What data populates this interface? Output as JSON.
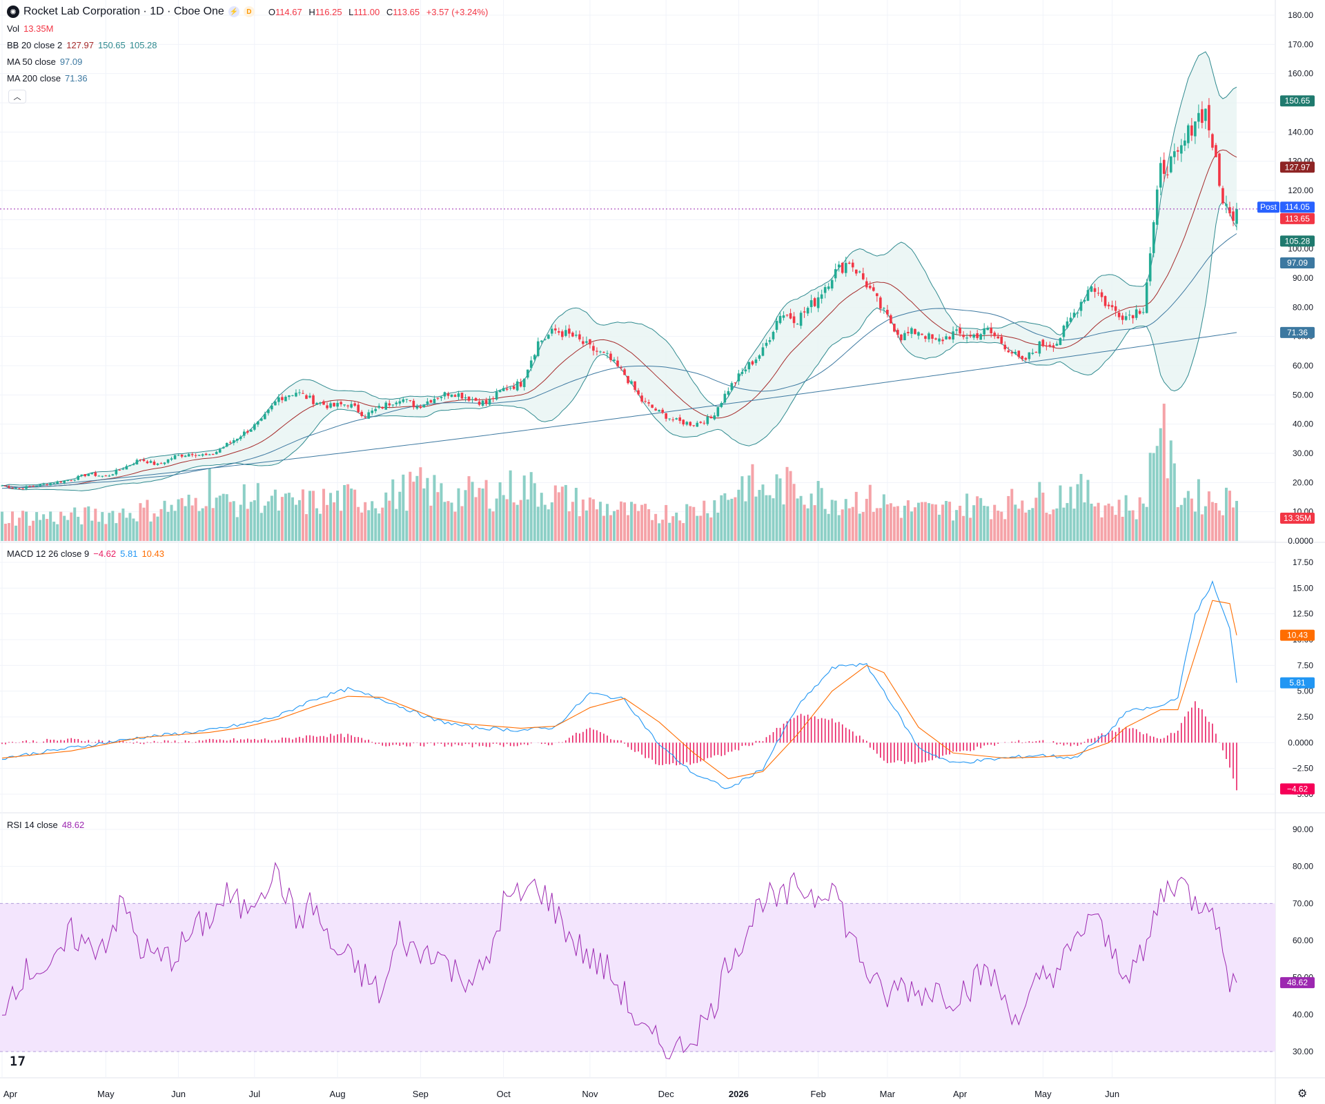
{
  "header": {
    "title": "Rocket Lab Corporation · 1D · Cboe One",
    "badge1": "⚡",
    "badge2": "D",
    "open_label": "O",
    "open": "114.67",
    "high_label": "H",
    "high": "116.25",
    "low_label": "L",
    "low": "111.00",
    "close_label": "C",
    "close": "113.65",
    "change": "+3.57 (+3.24%)"
  },
  "legends": {
    "vol": {
      "name": "Vol",
      "value": "13.35M"
    },
    "bb": {
      "name": "BB 20 close 2",
      "v1": "127.97",
      "v2": "150.65",
      "v3": "105.28"
    },
    "ma50": {
      "name": "MA 50 close",
      "value": "97.09"
    },
    "ma200": {
      "name": "MA 200 close",
      "value": "71.36"
    },
    "macd": {
      "name": "MACD 12 26 close 9",
      "v1": "−4.62",
      "v2": "5.81",
      "v3": "10.43"
    },
    "rsi": {
      "name": "RSI 14 close",
      "value": "48.62"
    }
  },
  "colors": {
    "up": "#22ab94",
    "down": "#f23645",
    "vol_up": "#8ccfc6",
    "vol_down": "#f5a3a8",
    "bb_basis": "#a52a2a",
    "bb_band": "#2f8a8f",
    "bb_fill": "#e7f4f2",
    "ma50": "#3c78a0",
    "ma200": "#3c78a0",
    "macd": "#2196f3",
    "signal": "#ff6d00",
    "hist": "#e91e63",
    "rsi": "#9c27b0",
    "rsi_band": "#f3e5fd",
    "post": "#2962ff",
    "last": "#f23645"
  },
  "chart_data": [
    {
      "type": "candlestick",
      "title": "Rocket Lab Corporation · 1D · Cboe One",
      "y_range": [
        0,
        180
      ],
      "y_ticks": [
        "180.00",
        "170.00",
        "160.00",
        "150.00",
        "140.00",
        "130.00",
        "120.00",
        "110.00",
        "100.00",
        "90.00",
        "80.00",
        "70.00",
        "60.00",
        "50.00",
        "40.00",
        "30.00",
        "20.00",
        "10.00",
        "0.0000"
      ],
      "x_labels": [
        "Apr",
        "May",
        "Jun",
        "Jul",
        "Aug",
        "Sep",
        "Oct",
        "Nov",
        "Dec",
        "2026",
        "Feb",
        "Mar",
        "Apr",
        "May",
        "Jun"
      ],
      "close_anchors": [
        [
          0,
          19
        ],
        [
          5,
          18
        ],
        [
          10,
          19
        ],
        [
          15,
          20
        ],
        [
          20,
          21
        ],
        [
          25,
          23
        ],
        [
          30,
          22
        ],
        [
          35,
          25
        ],
        [
          40,
          28
        ],
        [
          45,
          26
        ],
        [
          50,
          29
        ],
        [
          55,
          30
        ],
        [
          60,
          29
        ],
        [
          65,
          33
        ],
        [
          70,
          37
        ],
        [
          75,
          41
        ],
        [
          80,
          49
        ],
        [
          85,
          51
        ],
        [
          90,
          48
        ],
        [
          95,
          46
        ],
        [
          100,
          47
        ],
        [
          105,
          43
        ],
        [
          110,
          46
        ],
        [
          115,
          49
        ],
        [
          120,
          46
        ],
        [
          125,
          49
        ],
        [
          130,
          51
        ],
        [
          135,
          49
        ],
        [
          140,
          47
        ],
        [
          145,
          52
        ],
        [
          150,
          54
        ],
        [
          155,
          68
        ],
        [
          160,
          72
        ],
        [
          165,
          70
        ],
        [
          170,
          66
        ],
        [
          175,
          63
        ],
        [
          180,
          57
        ],
        [
          185,
          48
        ],
        [
          190,
          44
        ],
        [
          195,
          41
        ],
        [
          200,
          40
        ],
        [
          205,
          42
        ],
        [
          210,
          52
        ],
        [
          215,
          59
        ],
        [
          220,
          65
        ],
        [
          225,
          78
        ],
        [
          230,
          76
        ],
        [
          235,
          82
        ],
        [
          240,
          91
        ],
        [
          245,
          96
        ],
        [
          250,
          88
        ],
        [
          255,
          78
        ],
        [
          260,
          70
        ],
        [
          265,
          72
        ],
        [
          270,
          68
        ],
        [
          275,
          71
        ],
        [
          280,
          70
        ],
        [
          285,
          72
        ],
        [
          290,
          67
        ],
        [
          295,
          61
        ],
        [
          300,
          67
        ],
        [
          305,
          68
        ],
        [
          310,
          78
        ],
        [
          315,
          88
        ],
        [
          320,
          80
        ],
        [
          325,
          77
        ],
        [
          330,
          80
        ],
        [
          335,
          127
        ],
        [
          340,
          131
        ],
        [
          345,
          145
        ],
        [
          348,
          147
        ],
        [
          350,
          136
        ],
        [
          352,
          121
        ],
        [
          355,
          111
        ],
        [
          357,
          113.65
        ]
      ],
      "volume_anchors_M": [
        [
          0,
          8
        ],
        [
          20,
          8
        ],
        [
          40,
          10
        ],
        [
          55,
          12
        ],
        [
          60,
          19
        ],
        [
          65,
          12
        ],
        [
          75,
          15
        ],
        [
          80,
          12
        ],
        [
          100,
          14
        ],
        [
          110,
          14
        ],
        [
          120,
          18
        ],
        [
          130,
          15
        ],
        [
          140,
          16
        ],
        [
          150,
          18
        ],
        [
          155,
          17
        ],
        [
          160,
          15
        ],
        [
          170,
          12
        ],
        [
          185,
          9
        ],
        [
          200,
          10
        ],
        [
          210,
          15
        ],
        [
          215,
          20
        ],
        [
          220,
          16
        ],
        [
          225,
          18
        ],
        [
          230,
          18
        ],
        [
          235,
          16
        ],
        [
          240,
          14
        ],
        [
          250,
          14
        ],
        [
          260,
          11
        ],
        [
          270,
          10
        ],
        [
          280,
          12
        ],
        [
          290,
          12
        ],
        [
          295,
          14
        ],
        [
          305,
          15
        ],
        [
          310,
          17
        ],
        [
          320,
          12
        ],
        [
          330,
          11
        ],
        [
          335,
          46
        ],
        [
          336,
          33
        ],
        [
          340,
          16
        ],
        [
          350,
          14
        ],
        [
          357,
          13.35
        ]
      ],
      "series_values": {
        "bb_basis": 127.97,
        "bb_upper": 150.65,
        "bb_lower": 105.28,
        "ma50": 97.09,
        "ma200": 71.36,
        "post": 114.05,
        "last": 113.65,
        "volume_last": "13.35M"
      },
      "axis_tags": {
        "bb_upper": "150.65",
        "bb_basis": "127.97",
        "post_label": "Post",
        "post": "114.05",
        "last": "113.65",
        "bb_lower": "105.28",
        "ma50": "97.09",
        "ma200": "71.36",
        "volume": "13.35M"
      }
    },
    {
      "type": "line",
      "title": "MACD 12 26 close 9",
      "y_range": [
        -5,
        17.5
      ],
      "y_ticks": [
        "17.50",
        "15.00",
        "12.50",
        "10.00",
        "7.50",
        "5.00",
        "2.50",
        "0.0000",
        "−2.50",
        "−5.00"
      ],
      "macd_anchors": [
        [
          0,
          -1.5
        ],
        [
          20,
          -0.5
        ],
        [
          40,
          0.5
        ],
        [
          60,
          1.2
        ],
        [
          70,
          1.8
        ],
        [
          80,
          2.6
        ],
        [
          90,
          4.2
        ],
        [
          100,
          5.2
        ],
        [
          110,
          4.2
        ],
        [
          125,
          2.2
        ],
        [
          135,
          1.5
        ],
        [
          150,
          1.2
        ],
        [
          160,
          1.5
        ],
        [
          170,
          4.8
        ],
        [
          180,
          4.2
        ],
        [
          190,
          -0.2
        ],
        [
          200,
          -3.0
        ],
        [
          210,
          -4.5
        ],
        [
          220,
          -2.5
        ],
        [
          230,
          3.5
        ],
        [
          240,
          7.2
        ],
        [
          245,
          7.6
        ],
        [
          250,
          7.5
        ],
        [
          255,
          5.0
        ],
        [
          265,
          -0.5
        ],
        [
          275,
          -2.0
        ],
        [
          290,
          -1.5
        ],
        [
          300,
          -1.2
        ],
        [
          310,
          -1.5
        ],
        [
          320,
          1.0
        ],
        [
          325,
          3.0
        ],
        [
          335,
          3.5
        ],
        [
          340,
          4.5
        ],
        [
          345,
          12.5
        ],
        [
          350,
          15.5
        ],
        [
          355,
          11.0
        ],
        [
          357,
          5.81
        ]
      ],
      "signal_anchors": [
        [
          0,
          -1.5
        ],
        [
          20,
          -0.8
        ],
        [
          40,
          0.5
        ],
        [
          60,
          1.0
        ],
        [
          70,
          1.5
        ],
        [
          80,
          2.3
        ],
        [
          90,
          3.5
        ],
        [
          100,
          4.5
        ],
        [
          110,
          4.4
        ],
        [
          125,
          2.4
        ],
        [
          135,
          1.8
        ],
        [
          150,
          1.4
        ],
        [
          160,
          1.6
        ],
        [
          170,
          3.4
        ],
        [
          180,
          4.3
        ],
        [
          190,
          2.0
        ],
        [
          200,
          -1.0
        ],
        [
          210,
          -3.5
        ],
        [
          220,
          -2.8
        ],
        [
          230,
          0.8
        ],
        [
          240,
          5.0
        ],
        [
          250,
          7.5
        ],
        [
          255,
          6.8
        ],
        [
          265,
          1.5
        ],
        [
          275,
          -1.0
        ],
        [
          290,
          -1.5
        ],
        [
          300,
          -1.4
        ],
        [
          310,
          -1.2
        ],
        [
          320,
          0.0
        ],
        [
          325,
          1.5
        ],
        [
          335,
          3.2
        ],
        [
          340,
          3.2
        ],
        [
          345,
          8.5
        ],
        [
          350,
          13.8
        ],
        [
          355,
          13.5
        ],
        [
          357,
          10.43
        ]
      ],
      "last_values": {
        "histogram": "−4.62",
        "macd": "5.81",
        "signal": "10.43"
      }
    },
    {
      "type": "line",
      "title": "RSI 14 close",
      "y_range": [
        27,
        92
      ],
      "y_ticks": [
        "90.00",
        "80.00",
        "70.00",
        "60.00",
        "50.00",
        "40.00",
        "30.00"
      ],
      "band": [
        30,
        70
      ],
      "rsi_anchors": [
        [
          0,
          42
        ],
        [
          5,
          50
        ],
        [
          10,
          53
        ],
        [
          15,
          52
        ],
        [
          20,
          62
        ],
        [
          25,
          58
        ],
        [
          30,
          60
        ],
        [
          35,
          70
        ],
        [
          40,
          58
        ],
        [
          45,
          55
        ],
        [
          50,
          56
        ],
        [
          55,
          62
        ],
        [
          60,
          66
        ],
        [
          65,
          72
        ],
        [
          70,
          68
        ],
        [
          75,
          75
        ],
        [
          80,
          78
        ],
        [
          85,
          65
        ],
        [
          90,
          70
        ],
        [
          95,
          58
        ],
        [
          100,
          55
        ],
        [
          105,
          50
        ],
        [
          110,
          45
        ],
        [
          115,
          62
        ],
        [
          120,
          56
        ],
        [
          125,
          58
        ],
        [
          130,
          52
        ],
        [
          135,
          50
        ],
        [
          140,
          52
        ],
        [
          145,
          70
        ],
        [
          150,
          72
        ],
        [
          155,
          75
        ],
        [
          160,
          68
        ],
        [
          165,
          60
        ],
        [
          170,
          55
        ],
        [
          175,
          52
        ],
        [
          180,
          45
        ],
        [
          185,
          35
        ],
        [
          190,
          32
        ],
        [
          195,
          30
        ],
        [
          200,
          35
        ],
        [
          205,
          40
        ],
        [
          210,
          55
        ],
        [
          215,
          62
        ],
        [
          220,
          72
        ],
        [
          225,
          70
        ],
        [
          230,
          75
        ],
        [
          235,
          72
        ],
        [
          240,
          76
        ],
        [
          245,
          62
        ],
        [
          250,
          52
        ],
        [
          255,
          44
        ],
        [
          260,
          48
        ],
        [
          265,
          46
        ],
        [
          270,
          47
        ],
        [
          275,
          45
        ],
        [
          280,
          48
        ],
        [
          285,
          52
        ],
        [
          290,
          44
        ],
        [
          295,
          38
        ],
        [
          300,
          50
        ],
        [
          305,
          52
        ],
        [
          310,
          58
        ],
        [
          315,
          68
        ],
        [
          320,
          58
        ],
        [
          325,
          52
        ],
        [
          330,
          55
        ],
        [
          335,
          72
        ],
        [
          340,
          77
        ],
        [
          345,
          70
        ],
        [
          350,
          72
        ],
        [
          352,
          60
        ],
        [
          355,
          50
        ],
        [
          357,
          48.62
        ]
      ],
      "last_value": "48.62"
    }
  ]
}
